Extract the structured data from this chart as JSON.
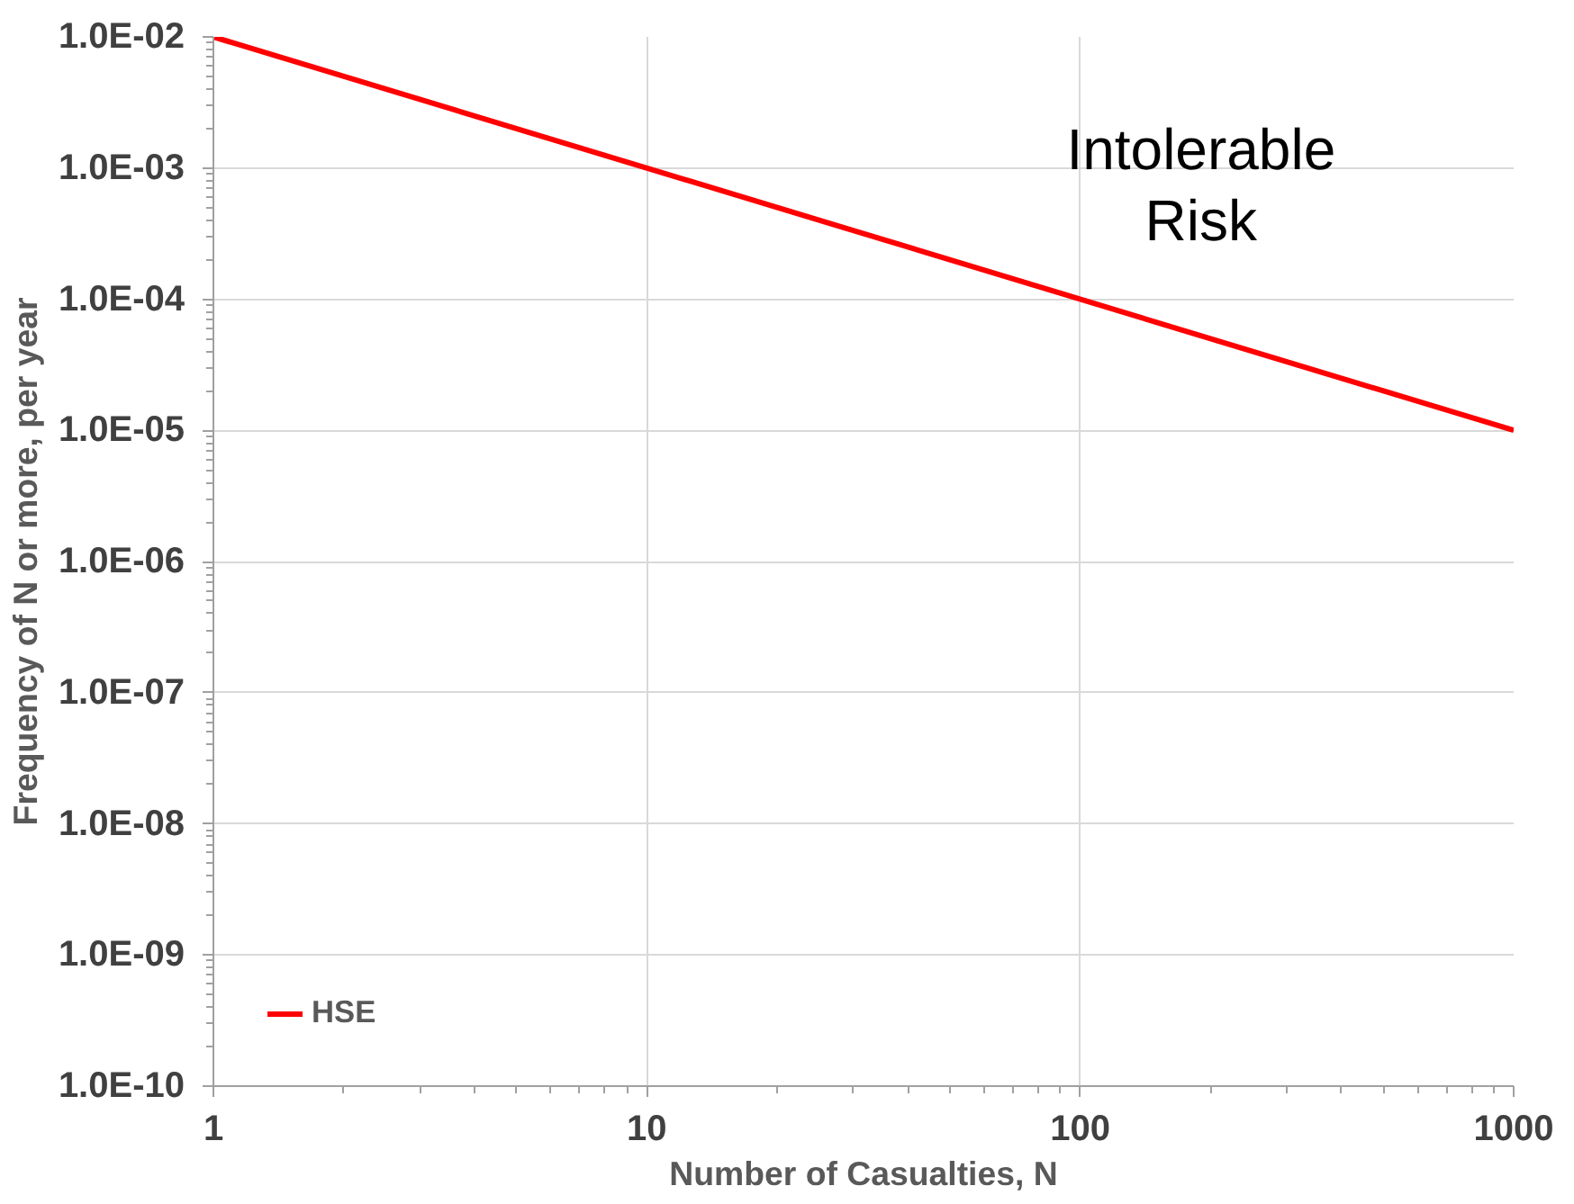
{
  "chart_data": {
    "type": "line",
    "xlabel": "Number of Casualties, N",
    "ylabel": "Frequency of N or more, per year",
    "log": "xy",
    "grid": true,
    "legend": "bottom left",
    "marker": "none",
    "line_style": "solid",
    "xlim": [
      1,
      1000
    ],
    "ylim": [
      1e-10,
      0.01
    ],
    "xticks": [
      1,
      10,
      100,
      1000
    ],
    "yticks": [
      {
        "value": 1e-10,
        "label": "1.0E-10"
      },
      {
        "value": 1e-09,
        "label": "1.0E-09"
      },
      {
        "value": 1e-08,
        "label": "1.0E-08"
      },
      {
        "value": 1e-07,
        "label": "1.0E-07"
      },
      {
        "value": 1e-06,
        "label": "1.0E-06"
      },
      {
        "value": 1e-05,
        "label": "1.0E-05"
      },
      {
        "value": 0.0001,
        "label": "1.0E-04"
      },
      {
        "value": 0.001,
        "label": "1.0E-03"
      },
      {
        "value": 0.01,
        "label": "1.0E-02"
      }
    ],
    "x": [
      1,
      1000
    ],
    "series": [
      {
        "name": "HSE",
        "color": "#ff0000",
        "values": [
          0.01,
          1e-05
        ]
      }
    ],
    "annotations": [
      "Intolerable\nRisk"
    ]
  }
}
